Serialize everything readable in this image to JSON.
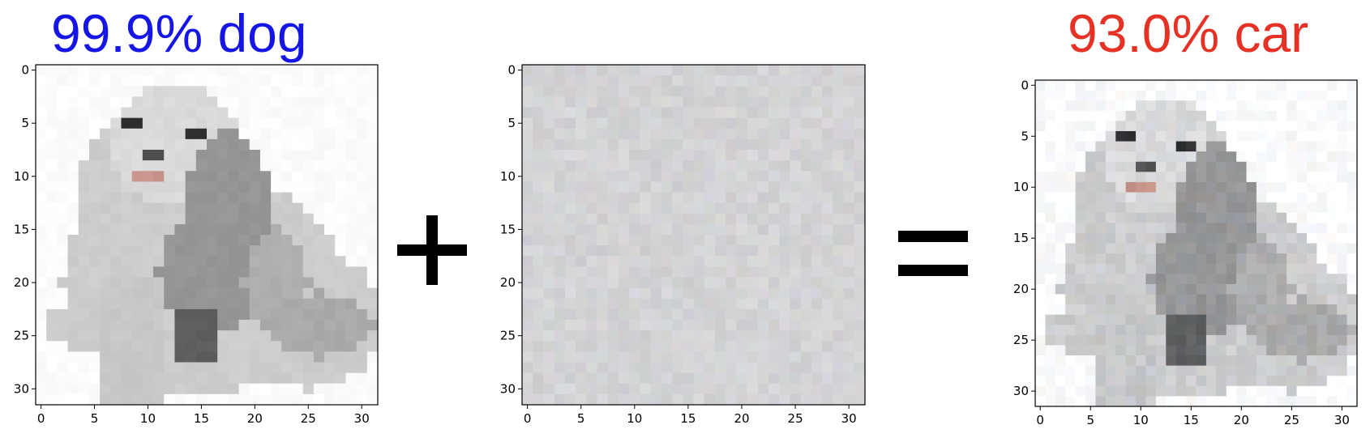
{
  "labels": {
    "left_prediction": "99.9% dog",
    "right_prediction": "93.0% car",
    "left_color": "#1515e6",
    "right_color": "#e63224"
  },
  "operators": {
    "plus": "+",
    "equals": "="
  },
  "panels": [
    {
      "id": "original",
      "content": "dog-image",
      "x_ticks": [
        "0",
        "5",
        "10",
        "15",
        "20",
        "25",
        "30"
      ],
      "y_ticks": [
        "0",
        "5",
        "10",
        "15",
        "20",
        "25",
        "30"
      ]
    },
    {
      "id": "perturbation",
      "content": "noise",
      "x_ticks": [
        "0",
        "5",
        "10",
        "15",
        "20",
        "25",
        "30"
      ],
      "y_ticks": [
        "0",
        "5",
        "10",
        "15",
        "20",
        "25",
        "30"
      ]
    },
    {
      "id": "adversarial",
      "content": "dog-image-perturbed",
      "x_ticks": [
        "0",
        "5",
        "10",
        "15",
        "20",
        "25",
        "30"
      ],
      "y_ticks": [
        "0",
        "5",
        "10",
        "15",
        "20",
        "25",
        "30"
      ]
    }
  ],
  "image_grid_size": 32
}
